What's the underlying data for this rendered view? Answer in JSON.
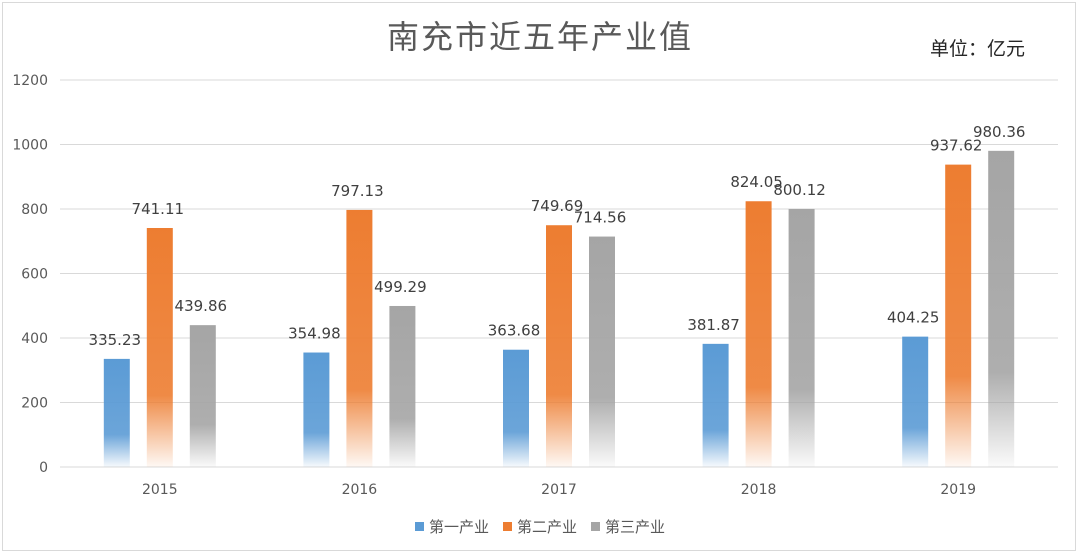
{
  "title": "南充市近五年产业值",
  "unit": "单位：亿元",
  "colors": {
    "primary": "#5b9bd5",
    "secondary": "#ed7d31",
    "tertiary": "#a5a5a5",
    "grid": "#d9d9d9",
    "axis_text": "#595959"
  },
  "chart_data": {
    "type": "bar",
    "title": "南充市近五年产业值",
    "categories": [
      "2015",
      "2016",
      "2017",
      "2018",
      "2019"
    ],
    "series": [
      {
        "name": "第一产业",
        "values": [
          335.23,
          354.98,
          363.68,
          381.87,
          404.25
        ]
      },
      {
        "name": "第二产业",
        "values": [
          741.11,
          797.13,
          749.69,
          824.05,
          937.62
        ]
      },
      {
        "name": "第三产业",
        "values": [
          439.86,
          499.29,
          714.56,
          800.12,
          980.36
        ]
      }
    ],
    "ylim": [
      0,
      1200
    ],
    "yticks": [
      0,
      200,
      400,
      600,
      800,
      1000,
      1200
    ],
    "grid": true,
    "legend_position": "bottom",
    "data_labels": true
  }
}
